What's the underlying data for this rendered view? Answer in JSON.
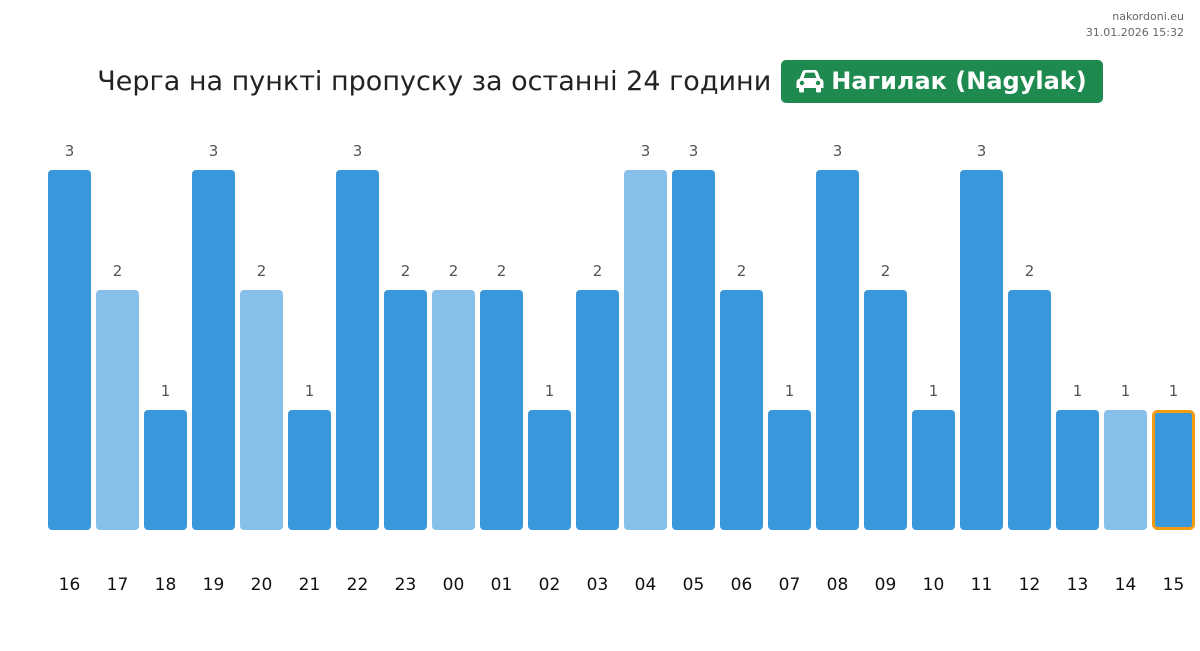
{
  "site": "nakordoni.eu",
  "timestamp": "31.01.2026 15:32",
  "title": "Черга на пункті пропуску за останні 24 години",
  "badge": {
    "icon": "car-icon",
    "label": "Нагилак (Nagylak)",
    "color": "#1e8a4f"
  },
  "colors": {
    "bar": "#3898db",
    "bar_light": "#87c0e8",
    "highlight_border": "#f39c12",
    "value_label": "#555555",
    "tick_label": "#111111"
  },
  "chart_data": {
    "type": "bar",
    "categories": [
      "16",
      "17",
      "18",
      "19",
      "20",
      "21",
      "22",
      "23",
      "00",
      "01",
      "02",
      "03",
      "04",
      "05",
      "06",
      "07",
      "08",
      "09",
      "10",
      "11",
      "12",
      "13",
      "14",
      "15"
    ],
    "values": [
      3,
      2,
      1,
      3,
      2,
      1,
      3,
      2,
      2,
      2,
      1,
      2,
      3,
      3,
      2,
      1,
      3,
      2,
      1,
      3,
      2,
      1,
      1,
      1
    ],
    "light": [
      false,
      true,
      false,
      false,
      true,
      false,
      false,
      false,
      true,
      false,
      false,
      false,
      true,
      false,
      false,
      false,
      false,
      false,
      false,
      false,
      false,
      false,
      true,
      false
    ],
    "highlight_index": 23,
    "ylim": [
      0,
      3
    ],
    "title": "",
    "xlabel": "",
    "ylabel": "",
    "grid": false,
    "legend": false
  }
}
